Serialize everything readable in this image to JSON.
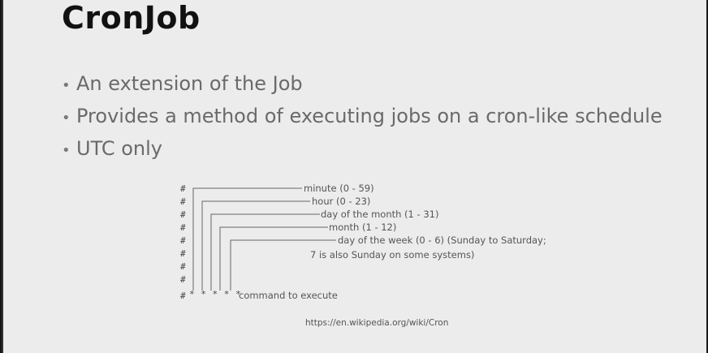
{
  "slide": {
    "title": "CronJob",
    "bullets": [
      "An extension of the Job",
      "Provides a method of executing jobs on a cron-like schedule",
      "UTC only"
    ],
    "bullet_glyph": "•",
    "diagram": {
      "hash": "#",
      "fields": [
        "minute (0 - 59)",
        "hour (0 - 23)",
        "day of the month (1 - 31)",
        "month (1 - 12)",
        "day of the week (0 - 6) (Sunday to Saturday;"
      ],
      "field_continuation": "7 is also Sunday on some systems)",
      "asterisks": "* * * * *",
      "command_label": "command to execute"
    },
    "source_url": "https://en.wikipedia.org/wiki/Cron"
  }
}
